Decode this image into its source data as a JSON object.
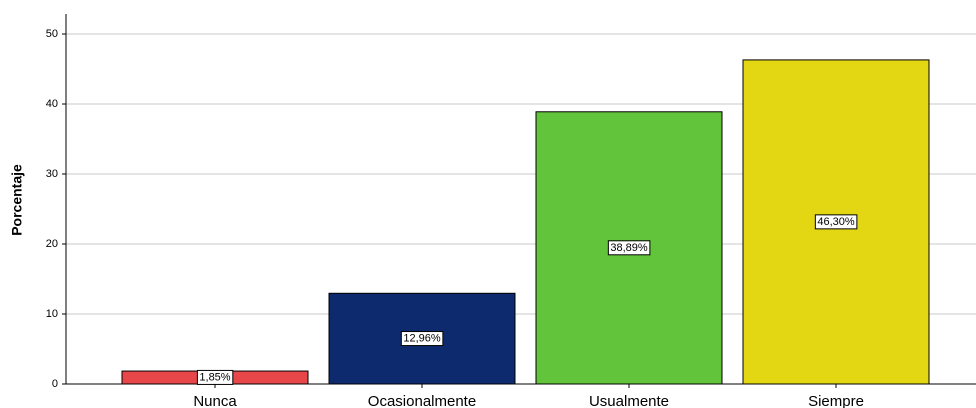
{
  "chart_data": {
    "type": "bar",
    "y_label": "Porcentaje",
    "categories": [
      "Nunca",
      "Ocasionalmente",
      "Usualmente",
      "Siempre"
    ],
    "values": [
      1.85,
      12.96,
      38.89,
      46.3
    ],
    "value_labels": [
      "1,85%",
      "12,96%",
      "38,89%",
      "46,30%"
    ],
    "colors": [
      "#e8474a",
      "#0d2a6e",
      "#62c43a",
      "#e3d613"
    ],
    "ylim": [
      0,
      52.86
    ],
    "yticks": [
      0,
      10,
      20,
      30,
      40,
      50
    ],
    "grid": true
  }
}
